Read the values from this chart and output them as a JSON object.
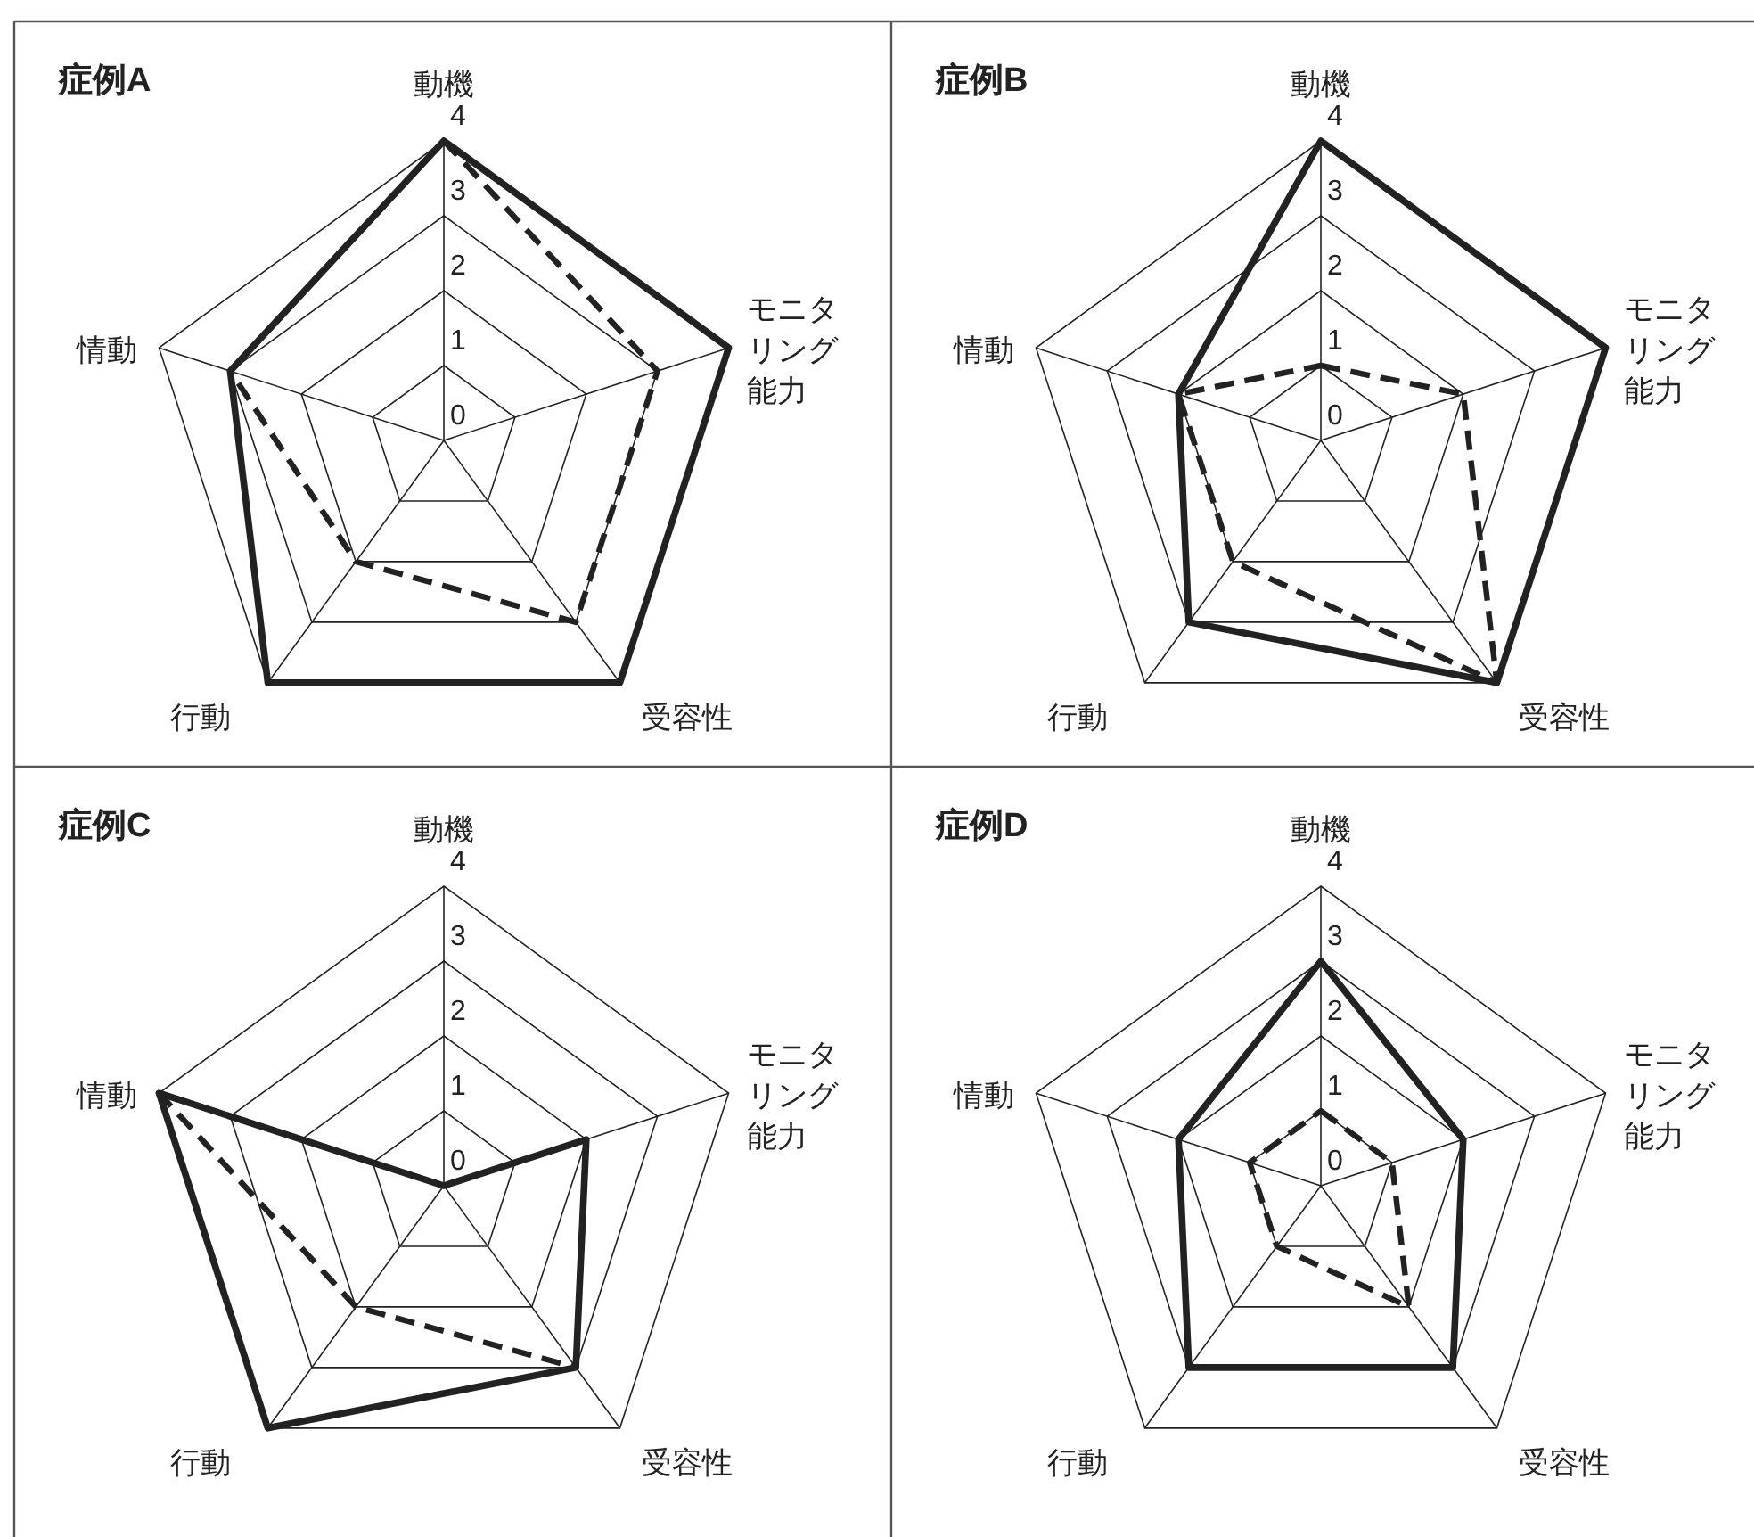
{
  "chart_data": [
    {
      "type": "radar",
      "title": "症例A",
      "categories": [
        "動機",
        "モニタリング能力",
        "受容性",
        "行動",
        "情動"
      ],
      "ylim": [
        0,
        4
      ],
      "yticks": [
        0,
        1,
        2,
        3,
        4
      ],
      "grid": true,
      "series": [
        {
          "color": "#222222",
          "line_style": "solid",
          "values": [
            4,
            4,
            4,
            4,
            3
          ]
        },
        {
          "color": "#222222",
          "line_style": "dashed",
          "values": [
            4,
            3,
            3,
            2,
            3
          ]
        }
      ]
    },
    {
      "type": "radar",
      "title": "症例B",
      "categories": [
        "動機",
        "モニタリング能力",
        "受容性",
        "行動",
        "情動"
      ],
      "ylim": [
        0,
        4
      ],
      "yticks": [
        0,
        1,
        2,
        3,
        4
      ],
      "grid": true,
      "series": [
        {
          "color": "#222222",
          "line_style": "solid",
          "values": [
            4,
            4,
            4,
            3,
            2
          ]
        },
        {
          "color": "#222222",
          "line_style": "dashed",
          "values": [
            1,
            2,
            4,
            2,
            2
          ]
        }
      ]
    },
    {
      "type": "radar",
      "title": "症例C",
      "categories": [
        "動機",
        "モニタリング能力",
        "受容性",
        "行動",
        "情動"
      ],
      "ylim": [
        0,
        4
      ],
      "yticks": [
        0,
        1,
        2,
        3,
        4
      ],
      "grid": true,
      "series": [
        {
          "color": "#222222",
          "line_style": "solid",
          "values": [
            0,
            2,
            3,
            4,
            4
          ]
        },
        {
          "color": "#222222",
          "line_style": "dashed",
          "values": [
            0,
            2,
            3,
            2,
            4
          ]
        }
      ]
    },
    {
      "type": "radar",
      "title": "症例D",
      "categories": [
        "動機",
        "モニタリング能力",
        "受容性",
        "行動",
        "情動"
      ],
      "ylim": [
        0,
        4
      ],
      "yticks": [
        0,
        1,
        2,
        3,
        4
      ],
      "grid": true,
      "series": [
        {
          "color": "#222222",
          "line_style": "solid",
          "values": [
            3,
            2,
            3,
            3,
            2
          ]
        },
        {
          "color": "#222222",
          "line_style": "dashed",
          "values": [
            1,
            1,
            2,
            1,
            1
          ]
        }
      ]
    }
  ]
}
